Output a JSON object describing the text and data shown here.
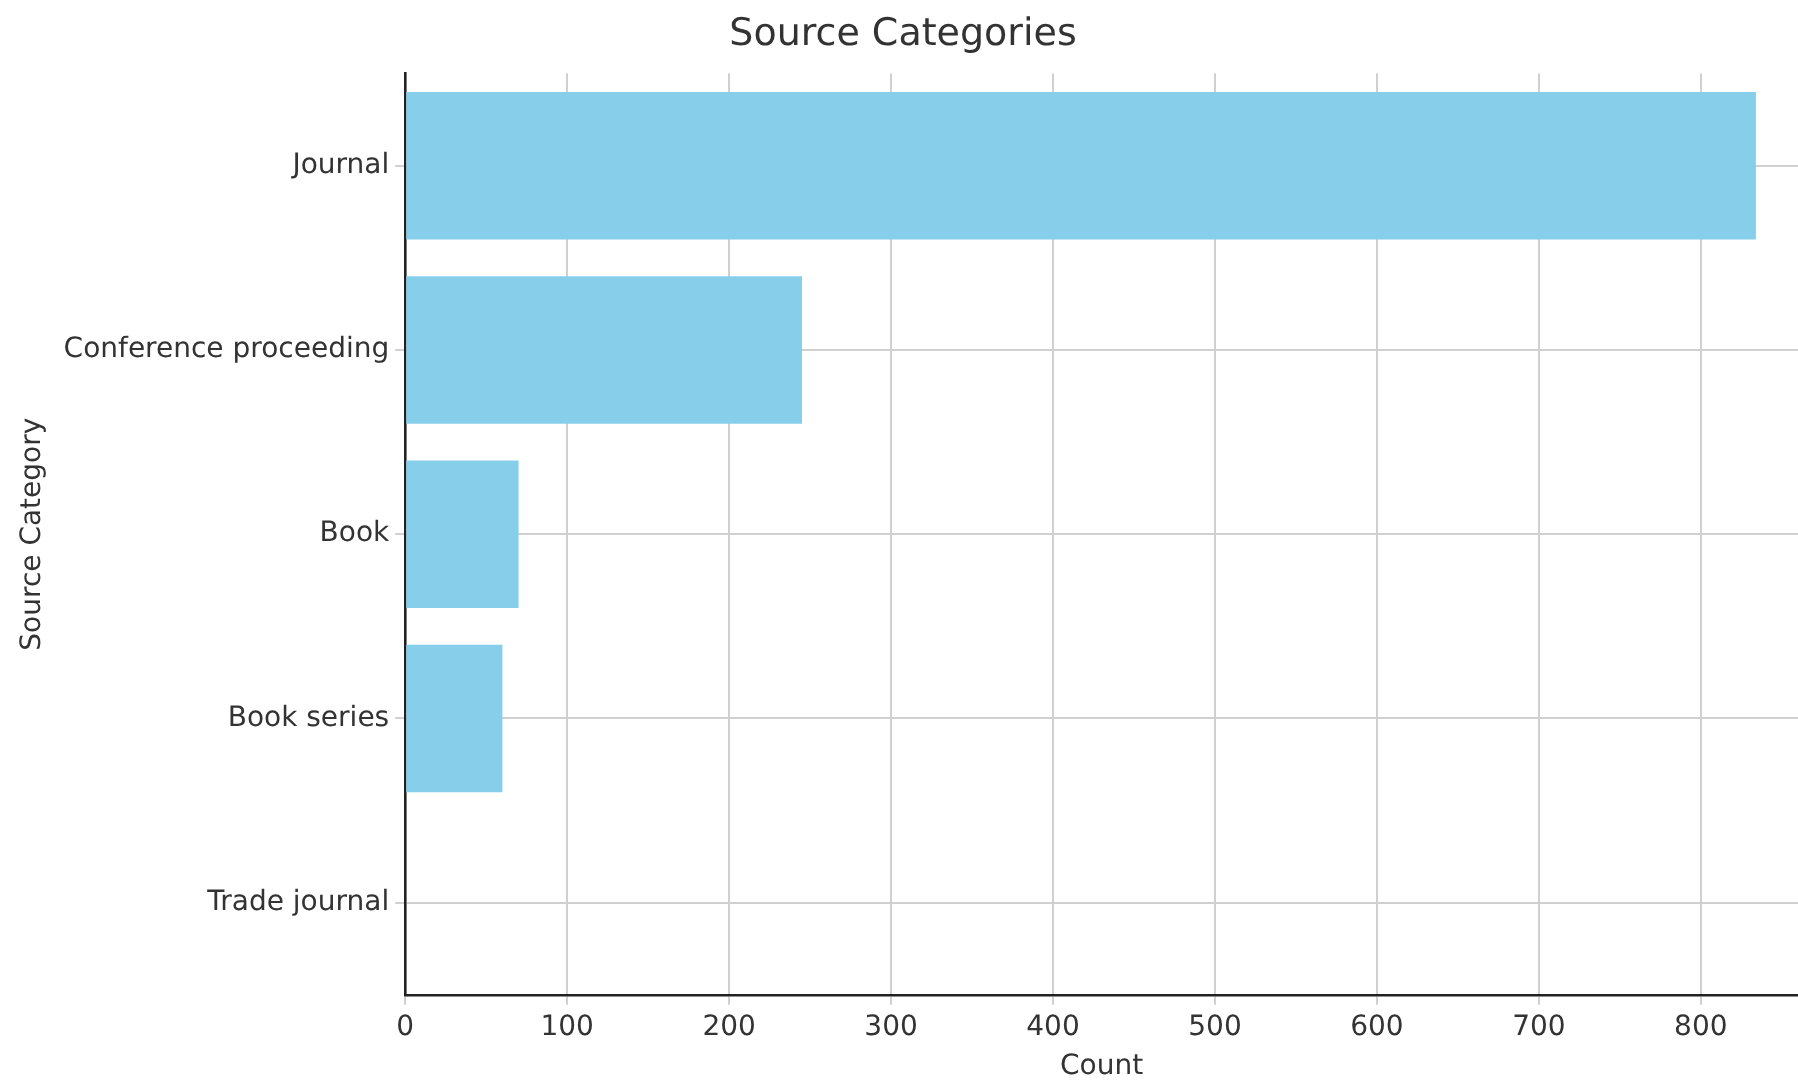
{
  "chart_data": {
    "type": "bar",
    "orientation": "horizontal",
    "title": "Source Categories",
    "xlabel": "Count",
    "ylabel": "Source Category",
    "categories": [
      "Journal",
      "Conference proceeding",
      "Book",
      "Book series",
      "Trade journal"
    ],
    "values": [
      834,
      245,
      70,
      60,
      0
    ],
    "color": "#87ceeb",
    "xlim": [
      0,
      860
    ],
    "xticks": [
      0,
      100,
      200,
      300,
      400,
      500,
      600,
      700,
      800
    ],
    "grid": true
  }
}
